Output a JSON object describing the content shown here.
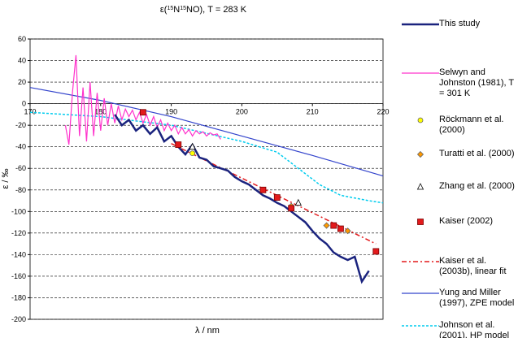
{
  "chart_data": {
    "type": "line",
    "title_parts": [
      "ε(",
      "15",
      "N",
      "15",
      "NO), T = 283 K"
    ],
    "x_label": "λ / nm",
    "y_label": "ε / ‰",
    "xlim": [
      170,
      220
    ],
    "xticks": [
      170,
      180,
      190,
      200,
      210,
      220
    ],
    "ylim": [
      -200,
      60
    ],
    "yticks": [
      -200,
      -180,
      -160,
      -140,
      -120,
      -100,
      -80,
      -60,
      -40,
      -20,
      0,
      20,
      40,
      60
    ],
    "grid": true,
    "series": [
      {
        "name": "This study",
        "mark": "line",
        "color": "#1a237e",
        "width": 2.5,
        "x": [
          182,
          183,
          184,
          185,
          186,
          187,
          188,
          189,
          190,
          191,
          192,
          193,
          194,
          195,
          196,
          197,
          198,
          199,
          200,
          201,
          202,
          203,
          204,
          205,
          206,
          207,
          208,
          209,
          210,
          211,
          212,
          213,
          214,
          215,
          216,
          217,
          218
        ],
        "values": [
          -10,
          -20,
          -15,
          -25,
          -20,
          -28,
          -22,
          -35,
          -30,
          -40,
          -47,
          -38,
          -50,
          -52,
          -58,
          -60,
          -62,
          -68,
          -72,
          -75,
          -80,
          -85,
          -88,
          -92,
          -95,
          -100,
          -105,
          -110,
          -118,
          -125,
          -130,
          -138,
          -142,
          -145,
          -142,
          -165,
          -155
        ]
      },
      {
        "name": "Selwyn and Johnston (1981), T = 301 K",
        "mark": "line",
        "color": "#ff33cc",
        "width": 1.2,
        "x": [
          175,
          175.5,
          176,
          176.5,
          177,
          177.5,
          178,
          178.5,
          179,
          179.5,
          180,
          180.5,
          181,
          181.5,
          182,
          182.5,
          183,
          183.5,
          184,
          184.5,
          185,
          185.5,
          186,
          186.5,
          187,
          187.5,
          188,
          188.5,
          189,
          189.5,
          190,
          190.5,
          191,
          191.5,
          192,
          192.5,
          193,
          193.5,
          194,
          194.5,
          195,
          195.5,
          196,
          196.5,
          197
        ],
        "values": [
          -20,
          -38,
          10,
          45,
          -30,
          15,
          -35,
          20,
          -30,
          10,
          -25,
          5,
          -20,
          0,
          -18,
          -2,
          -15,
          -5,
          -12,
          -6,
          -15,
          -8,
          -18,
          -10,
          -20,
          -12,
          -22,
          -15,
          -25,
          -18,
          -25,
          -20,
          -28,
          -22,
          -28,
          -24,
          -30,
          -25,
          -28,
          -26,
          -30,
          -27,
          -29,
          -28,
          -33
        ]
      },
      {
        "name": "Röckmann et al. (2000)",
        "mark": "circle",
        "color": "#ffff00",
        "x": [
          193
        ],
        "values": [
          -46
        ]
      },
      {
        "name": "Turatti et al. (2000)",
        "mark": "diamond",
        "color": "#ff9900",
        "x": [
          207,
          212,
          215
        ],
        "values": [
          -95,
          -113,
          -118
        ]
      },
      {
        "name": "Zhang et al. (2000)",
        "mark": "triangle",
        "color": "#ffffff",
        "x": [
          193,
          208
        ],
        "values": [
          -40,
          -92
        ]
      },
      {
        "name": "Kaiser (2002)",
        "mark": "square",
        "color": "#e31a1c",
        "x": [
          186,
          191,
          203,
          205,
          207,
          213,
          214,
          219
        ],
        "values": [
          -8,
          -38,
          -80,
          -87,
          -97,
          -113,
          -116,
          -137
        ]
      },
      {
        "name": "Kaiser et al. (2003b), linear fit",
        "mark": "line",
        "color": "#e31a1c",
        "width": 1.5,
        "dash": "6 3 2 3",
        "x": [
          190,
          219
        ],
        "values": [
          -37,
          -130
        ]
      },
      {
        "name": "Yung and Miller (1997), ZPE model",
        "mark": "line",
        "color": "#3344cc",
        "width": 1.2,
        "x": [
          170,
          180,
          190,
          200,
          210,
          220
        ],
        "values": [
          15,
          3,
          -12,
          -30,
          -48,
          -67
        ]
      },
      {
        "name": "Johnson et al. (2001), HP model",
        "mark": "line",
        "color": "#00ccee",
        "width": 1.5,
        "dash": "3 2",
        "x": [
          170,
          180,
          190,
          200,
          205,
          208,
          211,
          214,
          218,
          220
        ],
        "values": [
          -8,
          -12,
          -20,
          -35,
          -45,
          -60,
          -75,
          -85,
          -90,
          -92
        ]
      }
    ]
  }
}
